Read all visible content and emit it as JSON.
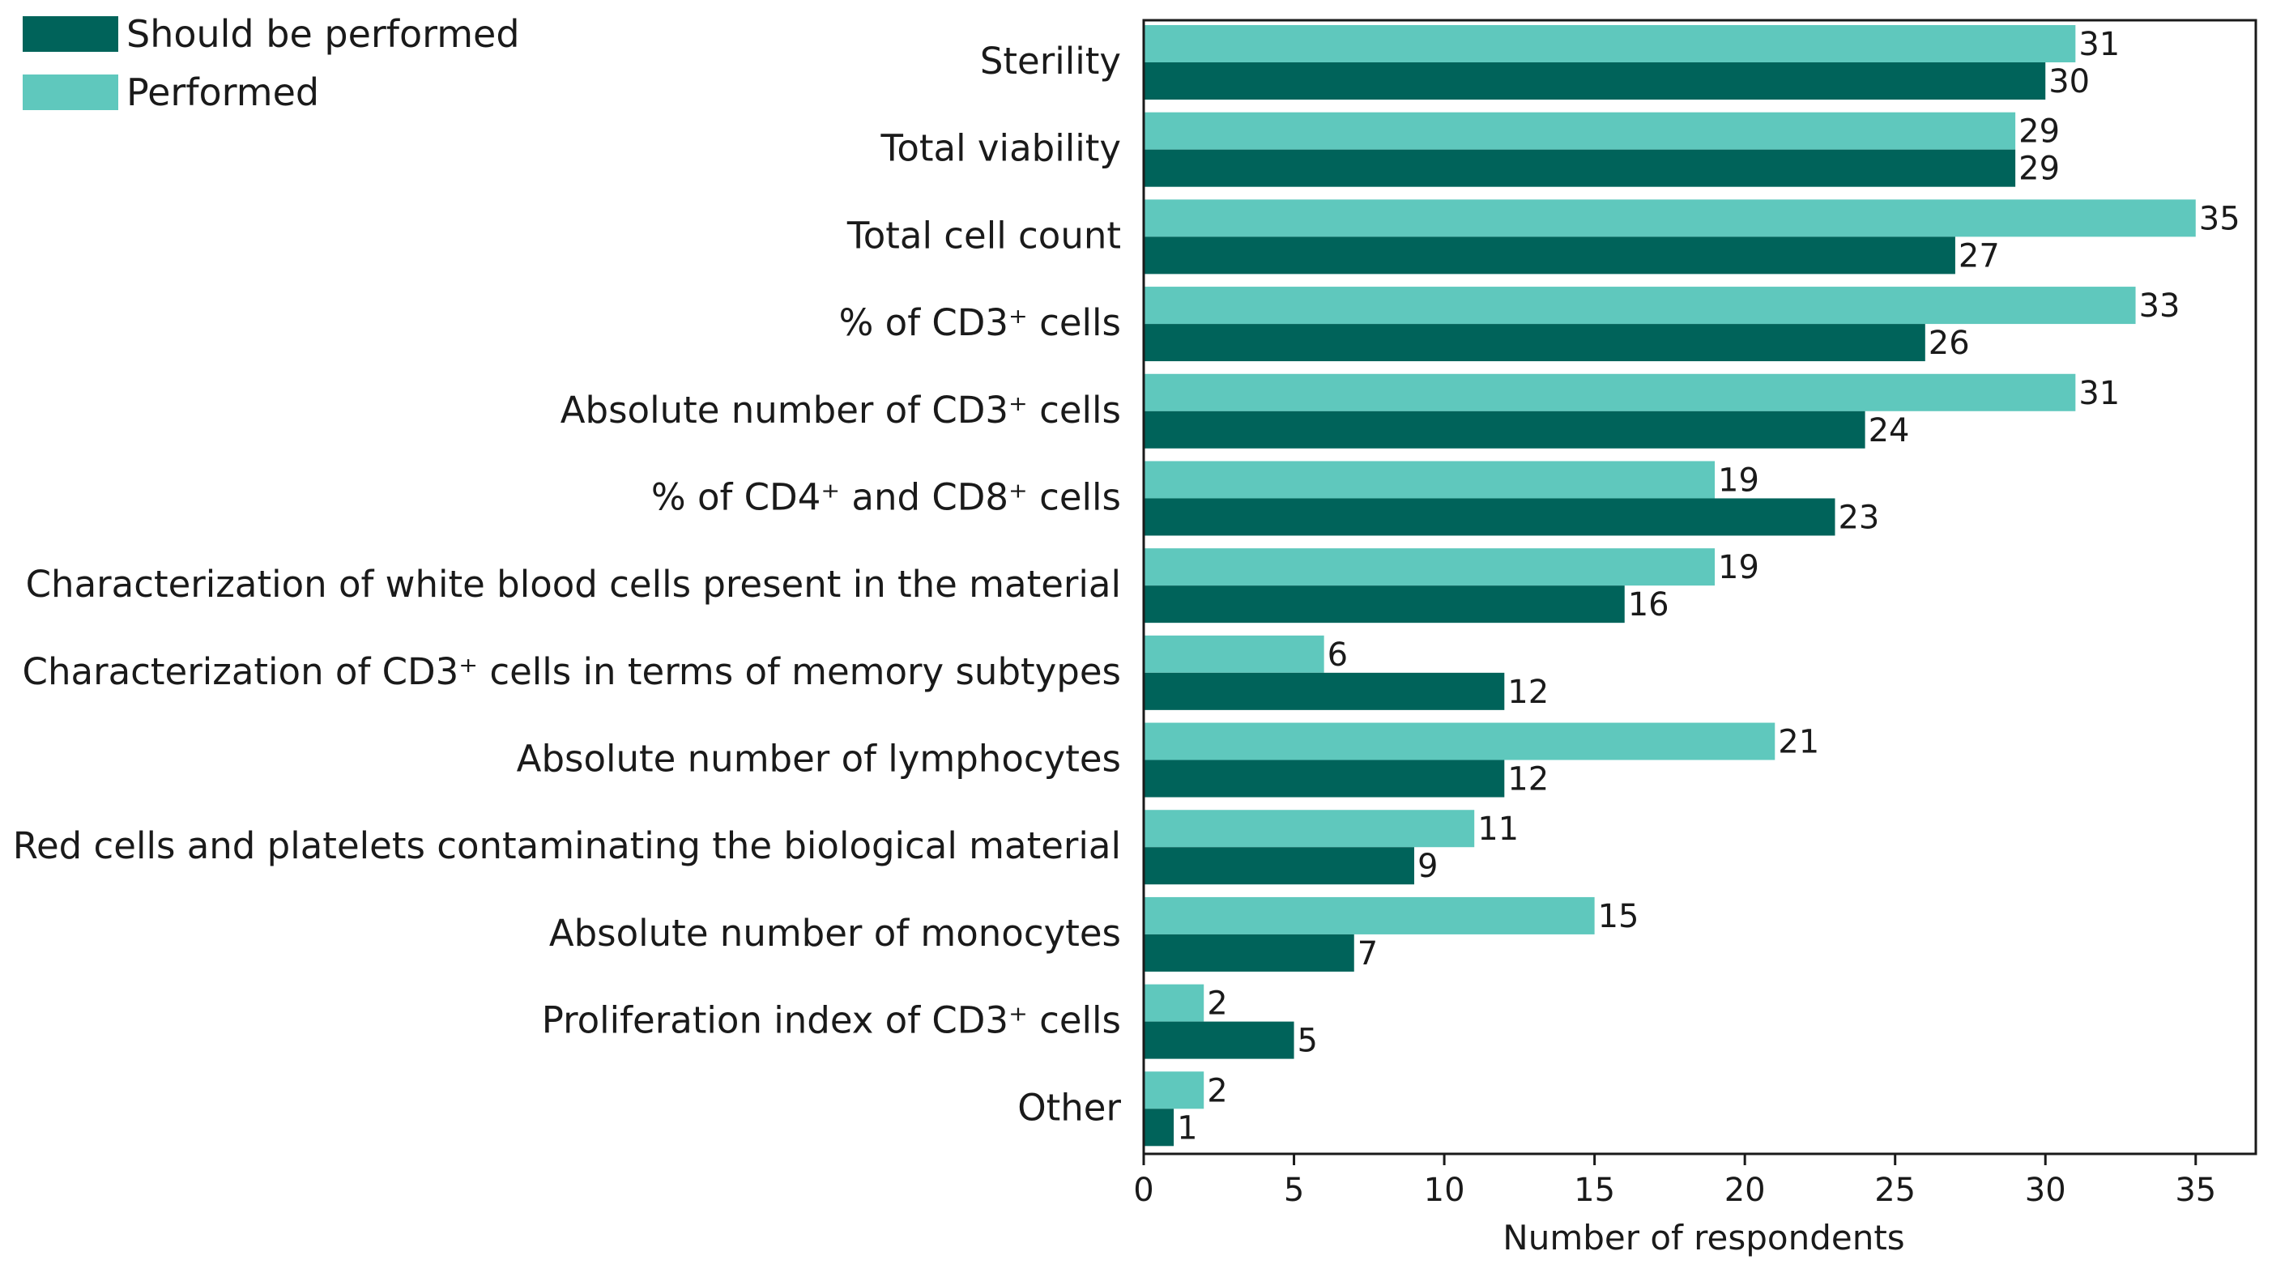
{
  "chart_data": {
    "type": "bar",
    "orientation": "horizontal",
    "title": "",
    "xlabel": "Number of respondents",
    "ylabel": "",
    "xlim": [
      0,
      37
    ],
    "xticks": [
      0,
      5,
      10,
      15,
      20,
      25,
      30,
      35
    ],
    "legend_position": "top-left",
    "categories": [
      "Sterility",
      "Total viability",
      "Total cell count",
      "% of CD3⁺ cells",
      "Absolute number of CD3⁺ cells",
      "% of CD4⁺ and CD8⁺ cells",
      "Characterization of white blood cells present in the material",
      "Characterization of CD3⁺ cells in terms of memory subtypes",
      "Absolute number of lymphocytes",
      "Red cells and platelets contaminating the biological material",
      "Absolute number of monocytes",
      "Proliferation index of CD3⁺ cells",
      "Other"
    ],
    "series": [
      {
        "name": "Should be performed",
        "color": "#00635a",
        "values": [
          30,
          29,
          27,
          26,
          24,
          23,
          16,
          12,
          12,
          9,
          7,
          5,
          1
        ]
      },
      {
        "name": "Performed",
        "color": "#5fc8bd",
        "values": [
          31,
          29,
          35,
          33,
          31,
          19,
          19,
          6,
          21,
          11,
          15,
          2,
          2
        ]
      }
    ]
  }
}
